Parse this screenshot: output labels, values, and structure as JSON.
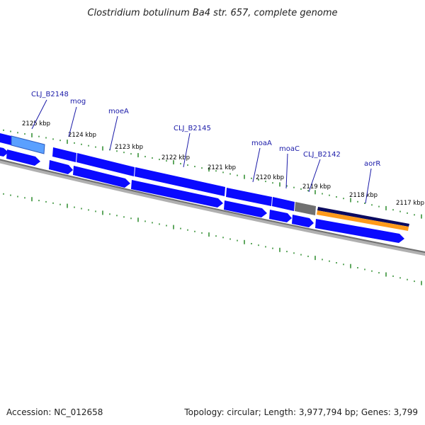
{
  "title": "Clostridium botulinum Ba4 str. 657, complete genome",
  "footer": {
    "accession": "Accession: NC_012658",
    "summary": "Topology: circular; Length: 3,977,794 bp; Genes: 3,799"
  },
  "ticks": [
    "2125 kbp",
    "2124 kbp",
    "2123 kbp",
    "2122 kbp",
    "2121 kbp",
    "2120 kbp",
    "2119 kbp",
    "2118 kbp",
    "2117 kbp"
  ],
  "genes": [
    "CLJ_B2148",
    "mog",
    "moeA",
    "CLJ_B2145",
    "moaA",
    "moaC",
    "CLJ_B2142",
    "aorR"
  ],
  "colors": {
    "cds": "#0a0aff",
    "cds_highlight": "#5aa0ff",
    "gray_feature": "#707070",
    "dark_feature": "#0a0a60",
    "orange_feature": "#ff9a1a",
    "backbone": "#808080",
    "gc_ticks": "#2a8a2a",
    "label_line": "#1a1aa8"
  }
}
